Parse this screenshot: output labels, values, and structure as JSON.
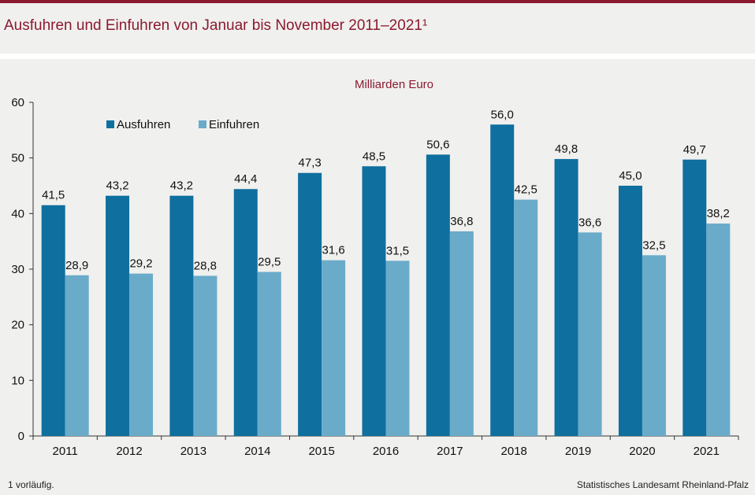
{
  "header": {
    "title": "Ausfuhren und Einfuhren von Januar bis November 2011–2021¹"
  },
  "footer": {
    "footnote": "1 vorläufig.",
    "source": "Statistisches Landesamt Rheinland-Pfalz"
  },
  "colors": {
    "accent": "#8b1a2e",
    "ausfuhren": "#0f6f9f",
    "einfuhren": "#6aabca"
  },
  "chart_data": {
    "type": "bar",
    "unit_label": "Milliarden Euro",
    "categories": [
      "2011",
      "2012",
      "2013",
      "2014",
      "2015",
      "2016",
      "2017",
      "2018",
      "2019",
      "2020",
      "2021"
    ],
    "series": [
      {
        "name": "Ausfuhren",
        "values": [
          41.5,
          43.2,
          43.2,
          44.4,
          47.3,
          48.5,
          50.6,
          56.0,
          49.8,
          45.0,
          49.7
        ],
        "labels": [
          "41,5",
          "43,2",
          "43,2",
          "44,4",
          "47,3",
          "48,5",
          "50,6",
          "56,0",
          "49,8",
          "45,0",
          "49,7"
        ]
      },
      {
        "name": "Einfuhren",
        "values": [
          28.9,
          29.2,
          28.8,
          29.5,
          31.6,
          31.5,
          36.8,
          42.5,
          36.6,
          32.5,
          38.2
        ],
        "labels": [
          "28,9",
          "29,2",
          "28,8",
          "29,5",
          "31,6",
          "31,5",
          "36,8",
          "42,5",
          "36,6",
          "32,5",
          "38,2"
        ]
      }
    ],
    "yticks": [
      "0",
      "10",
      "20",
      "30",
      "40",
      "50",
      "60"
    ],
    "ylim": [
      0,
      60
    ],
    "grid": false,
    "legend": "top-left"
  }
}
